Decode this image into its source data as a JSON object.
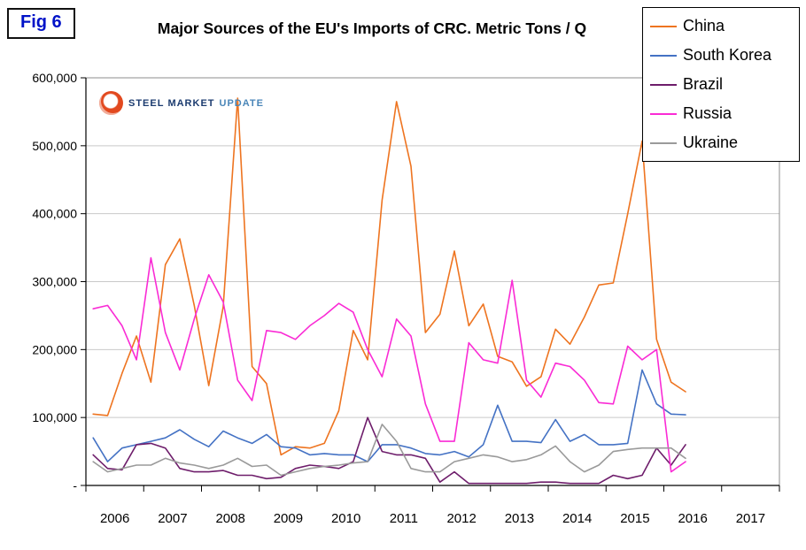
{
  "fig_label": "Fig 6",
  "title": "Major Sources of the EU's Imports of CRC. Metric Tons / Q",
  "logo": {
    "word1": "STEEL",
    "word2": "MARKET",
    "word3": "UPDATE"
  },
  "colors": {
    "grid": "#c9c9c9",
    "plot_border": "#8c8c8c",
    "axis": "#000000",
    "fig_label_text": "#0012c8"
  },
  "chart_data": {
    "type": "line",
    "title": "Major Sources of the EU's Imports of CRC. Metric Tons / Q",
    "x_axis": {
      "year_labels": [
        "2006",
        "2007",
        "2008",
        "2009",
        "2010",
        "2011",
        "2012",
        "2013",
        "2014",
        "2015",
        "2016",
        "2017"
      ],
      "slots": 48,
      "start_quarter": "2006 Q1",
      "end_quarter": "2016 Q2",
      "note": "quarterly data, 4 points per year"
    },
    "y_axis": {
      "min": 0,
      "max": 600000,
      "step": 100000,
      "tick_labels": [
        "-",
        "100,000",
        "200,000",
        "300,000",
        "400,000",
        "500,000",
        "600,000"
      ]
    },
    "legend_position": "top-right",
    "grid": true,
    "series": [
      {
        "name": "China",
        "color": "#ee7420",
        "values": [
          105000,
          103000,
          165000,
          220000,
          152000,
          325000,
          363000,
          265000,
          147000,
          263000,
          570000,
          175000,
          150000,
          45000,
          57000,
          55000,
          62000,
          110000,
          228000,
          185000,
          420000,
          565000,
          470000,
          225000,
          252000,
          345000,
          235000,
          267000,
          190000,
          182000,
          146000,
          160000,
          230000,
          208000,
          248000,
          295000,
          298000,
          400000,
          507000,
          215000,
          152000,
          138000
        ]
      },
      {
        "name": "South Korea",
        "color": "#4472c4",
        "values": [
          70000,
          35000,
          55000,
          60000,
          65000,
          70000,
          82000,
          68000,
          57000,
          80000,
          70000,
          62000,
          75000,
          57000,
          55000,
          45000,
          47000,
          45000,
          45000,
          35000,
          60000,
          60000,
          55000,
          47000,
          45000,
          50000,
          42000,
          60000,
          118000,
          65000,
          65000,
          63000,
          97000,
          65000,
          75000,
          60000,
          60000,
          62000,
          170000,
          120000,
          105000,
          104000
        ]
      },
      {
        "name": "Brazil",
        "color": "#6e1d6b",
        "values": [
          45000,
          25000,
          23000,
          60000,
          62000,
          55000,
          25000,
          20000,
          20000,
          22000,
          15000,
          15000,
          10000,
          12000,
          25000,
          30000,
          28000,
          25000,
          35000,
          100000,
          50000,
          45000,
          45000,
          40000,
          5000,
          20000,
          3000,
          3000,
          3000,
          3000,
          3000,
          5000,
          5000,
          3000,
          3000,
          3000,
          15000,
          10000,
          15000,
          55000,
          30000,
          60000
        ]
      },
      {
        "name": "Russia",
        "color": "#fa2bd5",
        "values": [
          260000,
          265000,
          235000,
          185000,
          335000,
          225000,
          170000,
          245000,
          310000,
          270000,
          155000,
          125000,
          228000,
          225000,
          215000,
          235000,
          250000,
          268000,
          255000,
          200000,
          160000,
          245000,
          220000,
          120000,
          65000,
          65000,
          210000,
          185000,
          180000,
          302000,
          155000,
          130000,
          180000,
          175000,
          155000,
          122000,
          120000,
          205000,
          185000,
          200000,
          20000,
          35000
        ]
      },
      {
        "name": "Ukraine",
        "color": "#9a9a9a",
        "values": [
          35000,
          20000,
          25000,
          30000,
          30000,
          40000,
          33000,
          30000,
          25000,
          30000,
          40000,
          28000,
          30000,
          15000,
          20000,
          25000,
          28000,
          30000,
          33000,
          35000,
          90000,
          65000,
          25000,
          20000,
          20000,
          35000,
          40000,
          45000,
          42000,
          35000,
          38000,
          45000,
          58000,
          35000,
          20000,
          30000,
          50000,
          53000,
          55000,
          55000,
          55000,
          40000
        ]
      }
    ]
  }
}
